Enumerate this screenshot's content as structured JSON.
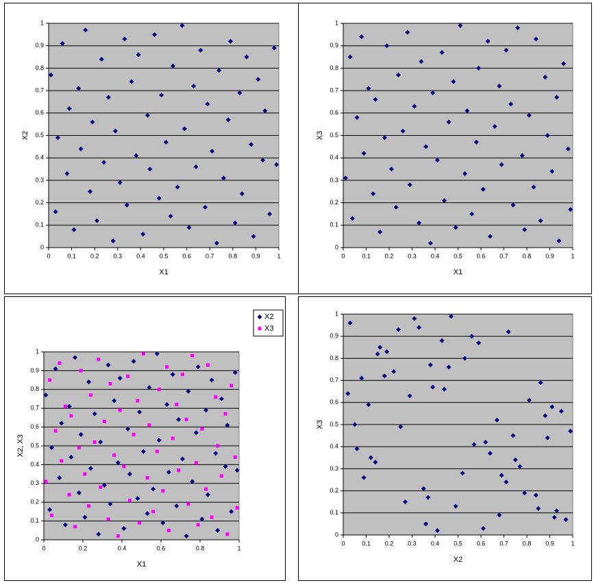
{
  "chart_data": [
    {
      "type": "scatter",
      "x_label": "X1",
      "y_label": "X2",
      "color": "#000080",
      "background": "#c0c0c0",
      "grid": true,
      "marker": "diamond",
      "xlim": [
        0,
        1
      ],
      "ylim": [
        0,
        1
      ],
      "xticks": [
        0,
        0.1,
        0.2,
        0.3,
        0.4,
        0.5,
        0.6,
        0.7,
        0.8,
        0.9,
        1
      ],
      "yticks": [
        0,
        0.1,
        0.2,
        0.3,
        0.4,
        0.5,
        0.6,
        0.7,
        0.8,
        0.9,
        1
      ],
      "x": [
        0.01,
        0.03,
        0.04,
        0.06,
        0.08,
        0.09,
        0.11,
        0.13,
        0.14,
        0.16,
        0.18,
        0.19,
        0.21,
        0.23,
        0.24,
        0.26,
        0.28,
        0.29,
        0.31,
        0.33,
        0.34,
        0.36,
        0.38,
        0.39,
        0.41,
        0.43,
        0.44,
        0.46,
        0.48,
        0.49,
        0.51,
        0.53,
        0.54,
        0.56,
        0.58,
        0.59,
        0.61,
        0.63,
        0.64,
        0.66,
        0.68,
        0.69,
        0.71,
        0.73,
        0.74,
        0.76,
        0.78,
        0.79,
        0.81,
        0.83,
        0.84,
        0.86,
        0.88,
        0.89,
        0.91,
        0.93,
        0.94,
        0.96,
        0.98,
        0.99
      ],
      "values": [
        0.77,
        0.16,
        0.49,
        0.91,
        0.33,
        0.62,
        0.08,
        0.71,
        0.44,
        0.97,
        0.25,
        0.56,
        0.12,
        0.84,
        0.38,
        0.67,
        0.03,
        0.52,
        0.29,
        0.93,
        0.19,
        0.74,
        0.41,
        0.86,
        0.06,
        0.59,
        0.35,
        0.95,
        0.22,
        0.68,
        0.47,
        0.14,
        0.81,
        0.27,
        0.99,
        0.53,
        0.09,
        0.72,
        0.36,
        0.88,
        0.18,
        0.64,
        0.43,
        0.02,
        0.79,
        0.31,
        0.57,
        0.92,
        0.11,
        0.69,
        0.24,
        0.85,
        0.46,
        0.05,
        0.75,
        0.39,
        0.61,
        0.15,
        0.89,
        0.37
      ]
    },
    {
      "type": "scatter",
      "x_label": "X1",
      "y_label": "X3",
      "color": "#000080",
      "background": "#c0c0c0",
      "grid": true,
      "marker": "diamond",
      "xlim": [
        0,
        1
      ],
      "ylim": [
        0,
        1
      ],
      "xticks": [
        0,
        0.1,
        0.2,
        0.3,
        0.4,
        0.5,
        0.6,
        0.7,
        0.8,
        0.9,
        1
      ],
      "yticks": [
        0,
        0.1,
        0.2,
        0.3,
        0.4,
        0.5,
        0.6,
        0.7,
        0.8,
        0.9,
        1
      ],
      "x": [
        0.01,
        0.03,
        0.04,
        0.06,
        0.08,
        0.09,
        0.11,
        0.13,
        0.14,
        0.16,
        0.18,
        0.19,
        0.21,
        0.23,
        0.24,
        0.26,
        0.28,
        0.29,
        0.31,
        0.33,
        0.34,
        0.36,
        0.38,
        0.39,
        0.41,
        0.43,
        0.44,
        0.46,
        0.48,
        0.49,
        0.51,
        0.53,
        0.54,
        0.56,
        0.58,
        0.59,
        0.61,
        0.63,
        0.64,
        0.66,
        0.68,
        0.69,
        0.71,
        0.73,
        0.74,
        0.76,
        0.78,
        0.79,
        0.81,
        0.83,
        0.84,
        0.86,
        0.88,
        0.89,
        0.91,
        0.93,
        0.94,
        0.96,
        0.98,
        0.99
      ],
      "values": [
        0.31,
        0.85,
        0.13,
        0.58,
        0.94,
        0.42,
        0.71,
        0.24,
        0.66,
        0.07,
        0.49,
        0.9,
        0.35,
        0.18,
        0.77,
        0.52,
        0.96,
        0.28,
        0.63,
        0.11,
        0.83,
        0.45,
        0.02,
        0.69,
        0.39,
        0.87,
        0.21,
        0.56,
        0.74,
        0.09,
        0.99,
        0.33,
        0.61,
        0.15,
        0.47,
        0.8,
        0.26,
        0.92,
        0.05,
        0.54,
        0.72,
        0.37,
        0.88,
        0.64,
        0.19,
        0.98,
        0.41,
        0.08,
        0.59,
        0.27,
        0.93,
        0.12,
        0.76,
        0.5,
        0.34,
        0.67,
        0.03,
        0.82,
        0.44,
        0.17
      ]
    },
    {
      "type": "scatter",
      "x_label": "X1",
      "y_label": "X2, X3",
      "background": "#c0c0c0",
      "grid": true,
      "legend": "top-right",
      "xlim": [
        0,
        1
      ],
      "ylim": [
        0,
        1
      ],
      "xticks": [
        0,
        0.2,
        0.4,
        0.6,
        0.8,
        1
      ],
      "yticks": [
        0,
        0.1,
        0.2,
        0.3,
        0.4,
        0.5,
        0.6,
        0.7,
        0.8,
        0.9,
        1
      ],
      "x": [
        0.01,
        0.03,
        0.04,
        0.06,
        0.08,
        0.09,
        0.11,
        0.13,
        0.14,
        0.16,
        0.18,
        0.19,
        0.21,
        0.23,
        0.24,
        0.26,
        0.28,
        0.29,
        0.31,
        0.33,
        0.34,
        0.36,
        0.38,
        0.39,
        0.41,
        0.43,
        0.44,
        0.46,
        0.48,
        0.49,
        0.51,
        0.53,
        0.54,
        0.56,
        0.58,
        0.59,
        0.61,
        0.63,
        0.64,
        0.66,
        0.68,
        0.69,
        0.71,
        0.73,
        0.74,
        0.76,
        0.78,
        0.79,
        0.81,
        0.83,
        0.84,
        0.86,
        0.88,
        0.89,
        0.91,
        0.93,
        0.94,
        0.96,
        0.98,
        0.99
      ],
      "series": [
        {
          "name": "X2",
          "color": "#000080",
          "marker": "diamond",
          "values": [
            0.77,
            0.16,
            0.49,
            0.91,
            0.33,
            0.62,
            0.08,
            0.71,
            0.44,
            0.97,
            0.25,
            0.56,
            0.12,
            0.84,
            0.38,
            0.67,
            0.03,
            0.52,
            0.29,
            0.93,
            0.19,
            0.74,
            0.41,
            0.86,
            0.06,
            0.59,
            0.35,
            0.95,
            0.22,
            0.68,
            0.47,
            0.14,
            0.81,
            0.27,
            0.99,
            0.53,
            0.09,
            0.72,
            0.36,
            0.88,
            0.18,
            0.64,
            0.43,
            0.02,
            0.79,
            0.31,
            0.57,
            0.92,
            0.11,
            0.69,
            0.24,
            0.85,
            0.46,
            0.05,
            0.75,
            0.39,
            0.61,
            0.15,
            0.89,
            0.37
          ]
        },
        {
          "name": "X3",
          "color": "#ff00ff",
          "marker": "square",
          "values": [
            0.31,
            0.85,
            0.13,
            0.58,
            0.94,
            0.42,
            0.71,
            0.24,
            0.66,
            0.07,
            0.49,
            0.9,
            0.35,
            0.18,
            0.77,
            0.52,
            0.96,
            0.28,
            0.63,
            0.11,
            0.83,
            0.45,
            0.02,
            0.69,
            0.39,
            0.87,
            0.21,
            0.56,
            0.74,
            0.09,
            0.99,
            0.33,
            0.61,
            0.15,
            0.47,
            0.8,
            0.26,
            0.92,
            0.05,
            0.54,
            0.72,
            0.37,
            0.88,
            0.64,
            0.19,
            0.98,
            0.41,
            0.08,
            0.59,
            0.27,
            0.93,
            0.12,
            0.76,
            0.5,
            0.34,
            0.67,
            0.03,
            0.82,
            0.44,
            0.17
          ]
        }
      ]
    },
    {
      "type": "scatter",
      "x_label": "X2",
      "y_label": "X3",
      "color": "#000080",
      "background": "#c0c0c0",
      "grid": true,
      "marker": "diamond",
      "xlim": [
        0,
        1
      ],
      "ylim": [
        0,
        1
      ],
      "xticks": [
        0,
        0.1,
        0.2,
        0.3,
        0.4,
        0.5,
        0.6,
        0.7,
        0.8,
        0.9,
        1
      ],
      "yticks": [
        0,
        0.1,
        0.2,
        0.3,
        0.4,
        0.5,
        0.6,
        0.7,
        0.8,
        0.9,
        1
      ],
      "x": [
        0.77,
        0.16,
        0.49,
        0.91,
        0.33,
        0.62,
        0.08,
        0.71,
        0.44,
        0.97,
        0.25,
        0.56,
        0.12,
        0.84,
        0.38,
        0.67,
        0.03,
        0.52,
        0.29,
        0.93,
        0.19,
        0.74,
        0.41,
        0.86,
        0.06,
        0.59,
        0.35,
        0.95,
        0.22,
        0.68,
        0.47,
        0.14,
        0.81,
        0.27,
        0.99,
        0.53,
        0.09,
        0.72,
        0.36,
        0.88,
        0.18,
        0.64,
        0.43,
        0.02,
        0.79,
        0.31,
        0.57,
        0.92,
        0.11,
        0.69,
        0.24,
        0.85,
        0.46,
        0.05,
        0.75,
        0.39,
        0.61,
        0.15,
        0.89,
        0.37
      ],
      "values": [
        0.31,
        0.85,
        0.13,
        0.58,
        0.94,
        0.42,
        0.71,
        0.24,
        0.66,
        0.07,
        0.49,
        0.9,
        0.35,
        0.18,
        0.77,
        0.52,
        0.96,
        0.28,
        0.63,
        0.11,
        0.83,
        0.45,
        0.02,
        0.69,
        0.39,
        0.87,
        0.21,
        0.56,
        0.74,
        0.09,
        0.99,
        0.33,
        0.61,
        0.15,
        0.47,
        0.8,
        0.26,
        0.92,
        0.05,
        0.54,
        0.72,
        0.37,
        0.88,
        0.64,
        0.19,
        0.98,
        0.41,
        0.08,
        0.59,
        0.27,
        0.93,
        0.12,
        0.76,
        0.5,
        0.34,
        0.67,
        0.03,
        0.82,
        0.44,
        0.17
      ]
    }
  ]
}
